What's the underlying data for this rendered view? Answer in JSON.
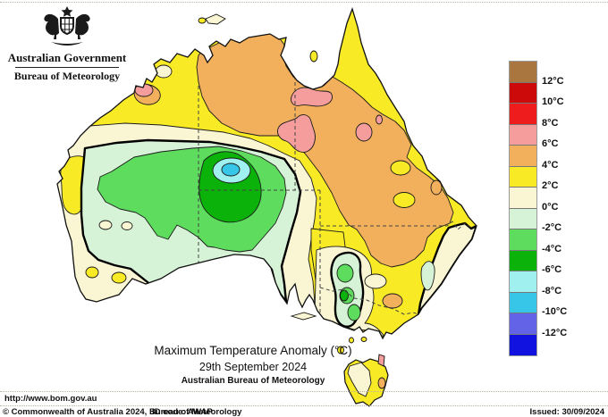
{
  "header": {
    "gov_label": "Australian Government",
    "bureau_label": "Bureau of Meteorology"
  },
  "map": {
    "title": "Maximum Temperature Anomaly (°C)",
    "date": "29th September 2024",
    "source": "Australian Bureau of Meteorology"
  },
  "legend": {
    "swatch_keys": [
      "brown",
      "dark_red",
      "red",
      "pink",
      "orange",
      "yellow",
      "cream",
      "mint",
      "green",
      "dark_green",
      "light_cyan",
      "cyan",
      "blue_violet",
      "blue"
    ],
    "labels": [
      "12°C",
      "10°C",
      "8°C",
      "6°C",
      "4°C",
      "2°C",
      "0°C",
      "-2°C",
      "-4°C",
      "-6°C",
      "-8°C",
      "-10°C",
      "-12°C"
    ]
  },
  "colors": {
    "brown": "#A9763F",
    "dark_red": "#CC0A0A",
    "red": "#EE1C1C",
    "pink": "#F59C9C",
    "orange": "#F2AF5C",
    "yellow": "#F8EB25",
    "cream": "#FAF6D3",
    "mint": "#D7F3D7",
    "green": "#5EDC5E",
    "dark_green": "#0AB20A",
    "light_cyan": "#A0F0F0",
    "cyan": "#38C6E8",
    "blue_violet": "#6363E8",
    "blue": "#1212E0"
  },
  "footer": {
    "url": "http://www.bom.gov.au",
    "copyright": "© Commonwealth of Australia 2024, Bureau of Meteorology",
    "id_code": "ID code: AWAP",
    "issued": "Issued: 30/09/2024"
  }
}
